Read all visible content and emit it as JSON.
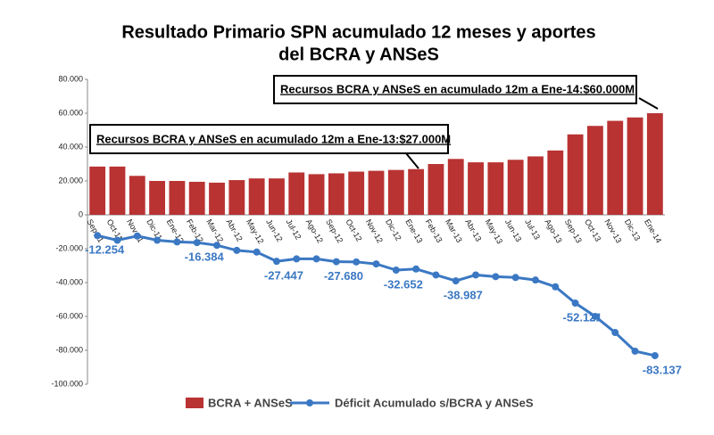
{
  "chart_data": {
    "type": "bar_line",
    "title": [
      "Resultado Primario SPN acumulado 12 meses y aportes",
      "del BCRA y ANSeS"
    ],
    "categories": [
      "Sep-11",
      "Oct-11",
      "Nov-11",
      "Dic-11",
      "Ene-12",
      "Feb-12",
      "Mar-12",
      "Abr-12",
      "May-12",
      "Jun-12",
      "Jul-12",
      "Ago-12",
      "Sep-12",
      "Oct-12",
      "Nov-12",
      "Dic-12",
      "Ene-13",
      "Feb-13",
      "Mar-13",
      "Abr-13",
      "May-13",
      "Jun-13",
      "Jul-13",
      "Ago-13",
      "Sep-13",
      "Oct-13",
      "Nov-13",
      "Dic-13",
      "Ene-14"
    ],
    "series": [
      {
        "name": "BCRA + ANSeS",
        "color": "#b93333",
        "type": "bar",
        "values": [
          28500,
          28500,
          23000,
          20000,
          20000,
          19500,
          19000,
          20500,
          21500,
          21500,
          25000,
          24000,
          24500,
          25500,
          26000,
          26500,
          27000,
          30000,
          33000,
          31000,
          31000,
          32500,
          34500,
          38000,
          47500,
          52500,
          55500,
          57500,
          60000
        ]
      },
      {
        "name": "Déficit Acumulado s/BCRA y ANSeS",
        "color": "#3b78c3",
        "type": "line",
        "values": [
          -12254,
          -15000,
          -12500,
          -15000,
          -16000,
          -16384,
          -18000,
          -21000,
          -22000,
          -27447,
          -26000,
          -26000,
          -27680,
          -27800,
          -29000,
          -32652,
          -32000,
          -35500,
          -38987,
          -35500,
          -36500,
          -37000,
          -38500,
          -42500,
          -52121,
          -60000,
          -69500,
          -80500,
          -83137
        ],
        "value_labels": [
          "-12.254",
          null,
          null,
          null,
          null,
          "-16.384",
          null,
          null,
          null,
          "-27.447",
          null,
          null,
          "-27.680",
          null,
          null,
          "-32.652",
          null,
          null,
          "-38.987",
          null,
          null,
          null,
          null,
          null,
          "-52.121",
          null,
          null,
          null,
          "-83.137"
        ]
      }
    ],
    "ylim": [
      -100000,
      80000
    ],
    "yticks": [
      {
        "value": -100000,
        "label": "-100.000"
      },
      {
        "value": -80000,
        "label": "-80.000"
      },
      {
        "value": -60000,
        "label": "-60.000"
      },
      {
        "value": -40000,
        "label": "-40.000"
      },
      {
        "value": -20000,
        "label": "-20.000"
      },
      0,
      {
        "value": 20000,
        "label": "20.000"
      },
      {
        "value": 40000,
        "label": "40.000"
      },
      {
        "value": 60000,
        "label": "60.000"
      },
      {
        "value": 80000,
        "label": "80.000"
      }
    ],
    "annotations": [
      "Recursos BCRA y ANSeS en acumulado 12m a Ene-13:$27.000M",
      "Recursos BCRA y ANSeS en acumulado 12m a Ene-14:$60.000M"
    ],
    "legend": "bottom"
  }
}
